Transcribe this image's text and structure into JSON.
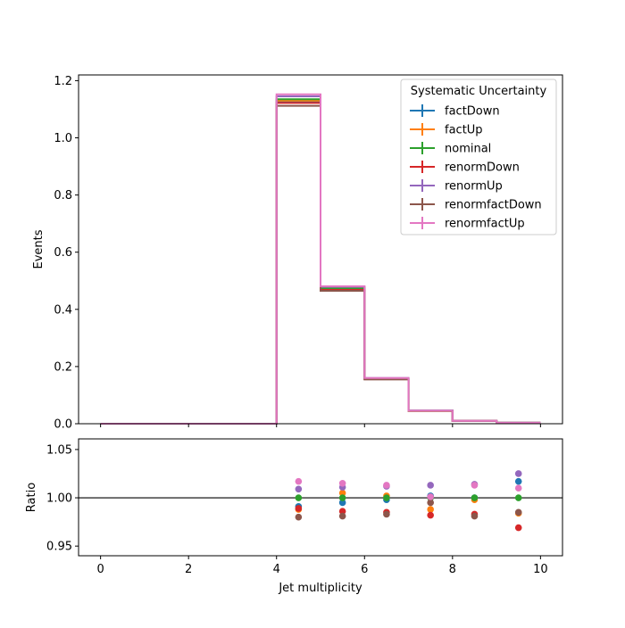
{
  "chart_data": [
    {
      "type": "line",
      "step": true,
      "xlabel": "",
      "ylabel": "Events",
      "xlim": [
        -0.5,
        10.5
      ],
      "ylim": [
        0,
        1.22
      ],
      "xticks": [
        0,
        2,
        4,
        6,
        8,
        10
      ],
      "yticks": [
        0.0,
        0.2,
        0.4,
        0.6,
        0.8,
        1.0,
        1.2
      ],
      "ytick_labels": [
        "0.0",
        "0.2",
        "0.4",
        "0.6",
        "0.8",
        "1.0",
        "1.2"
      ],
      "bin_edges": [
        0,
        1,
        2,
        3,
        4,
        5,
        6,
        7,
        8,
        9,
        10
      ],
      "legend_title": "Systematic Uncertainty",
      "legend_position": "top-right",
      "series": [
        {
          "name": "factDown",
          "color": "#1f77b4",
          "values": [
            0,
            0,
            0,
            0,
            1.125,
            0.472,
            0.158,
            0.046,
            0.01,
            0.0035
          ]
        },
        {
          "name": "factUp",
          "color": "#ff7f0e",
          "values": [
            0,
            0,
            0,
            0,
            1.13,
            0.477,
            0.158,
            0.045,
            0.01,
            0.0034
          ]
        },
        {
          "name": "nominal",
          "color": "#2ca02c",
          "values": [
            0,
            0,
            0,
            0,
            1.135,
            0.474,
            0.158,
            0.046,
            0.01,
            0.0034
          ]
        },
        {
          "name": "renormDown",
          "color": "#d62728",
          "values": [
            0,
            0,
            0,
            0,
            1.122,
            0.468,
            0.156,
            0.045,
            0.01,
            0.0033
          ]
        },
        {
          "name": "renormUp",
          "color": "#9467bd",
          "values": [
            0,
            0,
            0,
            0,
            1.145,
            0.479,
            0.16,
            0.046,
            0.01,
            0.0035
          ]
        },
        {
          "name": "renormfactDown",
          "color": "#8c564b",
          "values": [
            0,
            0,
            0,
            0,
            1.112,
            0.465,
            0.155,
            0.045,
            0.01,
            0.0034
          ]
        },
        {
          "name": "renormfactUp",
          "color": "#e377c2",
          "values": [
            0,
            0,
            0,
            0,
            1.152,
            0.481,
            0.16,
            0.046,
            0.01,
            0.0035
          ]
        }
      ]
    },
    {
      "type": "scatter",
      "xlabel": "Jet multiplicity",
      "ylabel": "Ratio",
      "xlim": [
        -0.5,
        10.5
      ],
      "ylim": [
        0.94,
        1.061
      ],
      "xticks": [
        0,
        2,
        4,
        6,
        8,
        10
      ],
      "xtick_labels": [
        "0",
        "2",
        "4",
        "6",
        "8",
        "10"
      ],
      "yticks": [
        0.95,
        1.0,
        1.05
      ],
      "ytick_labels": [
        "0.95",
        "1.00",
        "1.05"
      ],
      "reference_line": 1.0,
      "x": [
        4.5,
        5.5,
        6.5,
        7.5,
        8.5,
        9.5
      ],
      "series": [
        {
          "name": "factDown",
          "color": "#1f77b4",
          "values": [
            0.991,
            0.995,
            0.998,
            1.002,
            1.0,
            1.017
          ]
        },
        {
          "name": "factUp",
          "color": "#ff7f0e",
          "values": [
            0.988,
            1.005,
            1.002,
            0.988,
            0.998,
            0.984
          ]
        },
        {
          "name": "nominal",
          "color": "#2ca02c",
          "values": [
            1.0,
            1.0,
            1.0,
            1.0,
            1.0,
            1.0
          ]
        },
        {
          "name": "renormDown",
          "color": "#d62728",
          "values": [
            0.989,
            0.986,
            0.985,
            0.982,
            0.983,
            0.969
          ]
        },
        {
          "name": "renormUp",
          "color": "#9467bd",
          "values": [
            1.009,
            1.011,
            1.012,
            1.013,
            1.014,
            1.025
          ]
        },
        {
          "name": "renormfactDown",
          "color": "#8c564b",
          "values": [
            0.98,
            0.981,
            0.983,
            0.995,
            0.981,
            0.985
          ]
        },
        {
          "name": "renormfactUp",
          "color": "#e377c2",
          "values": [
            1.017,
            1.015,
            1.013,
            1.001,
            1.013,
            1.01
          ]
        }
      ]
    }
  ]
}
